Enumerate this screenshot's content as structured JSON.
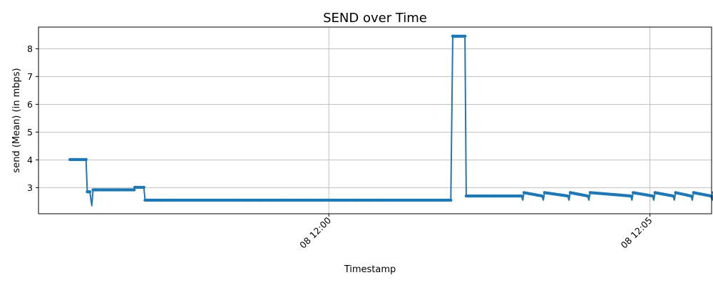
{
  "chart_data": {
    "type": "line",
    "title": "SEND over Time",
    "xlabel": "Timestamp",
    "ylabel": "send (Mean) (in mbps)",
    "x_unit": "minutes after 08 11:55",
    "xlim": [
      0.48,
      10.96
    ],
    "ylim": [
      2.06,
      8.78
    ],
    "grid": true,
    "legend": "none",
    "line_color": "#1f77b4",
    "x_ticks": [
      {
        "value": 5,
        "label": "08 12:00"
      },
      {
        "value": 10,
        "label": "08 12:05"
      }
    ],
    "y_ticks": [
      3,
      4,
      5,
      6,
      7,
      8
    ],
    "series": [
      {
        "x": [
          0.97,
          1.22,
          1.24,
          1.28,
          1.31,
          1.33,
          1.36,
          1.97,
          1.98,
          2.12,
          2.14,
          2.17,
          6.9,
          6.93,
          6.95,
          7.12,
          7.14,
          7.17,
          8.0,
          8.02,
          8.04,
          8.32,
          8.34,
          8.36,
          8.72,
          8.74,
          8.76,
          9.03,
          9.05,
          9.07,
          9.7,
          9.72,
          9.74,
          10.04,
          10.06,
          10.08,
          10.36,
          10.38,
          10.4,
          10.64,
          10.66,
          10.68,
          10.95,
          10.97,
          10.99,
          11.21
        ],
        "y": [
          4.01,
          4.01,
          2.85,
          2.85,
          2.35,
          2.92,
          2.92,
          2.92,
          3.01,
          3.01,
          2.55,
          2.55,
          2.55,
          8.45,
          8.45,
          8.45,
          2.7,
          2.7,
          2.7,
          2.55,
          2.82,
          2.7,
          2.55,
          2.82,
          2.7,
          2.55,
          2.82,
          2.7,
          2.55,
          2.82,
          2.7,
          2.55,
          2.82,
          2.7,
          2.55,
          2.82,
          2.7,
          2.55,
          2.82,
          2.7,
          2.55,
          2.82,
          2.7,
          2.55,
          2.82,
          2.7
        ]
      }
    ]
  }
}
